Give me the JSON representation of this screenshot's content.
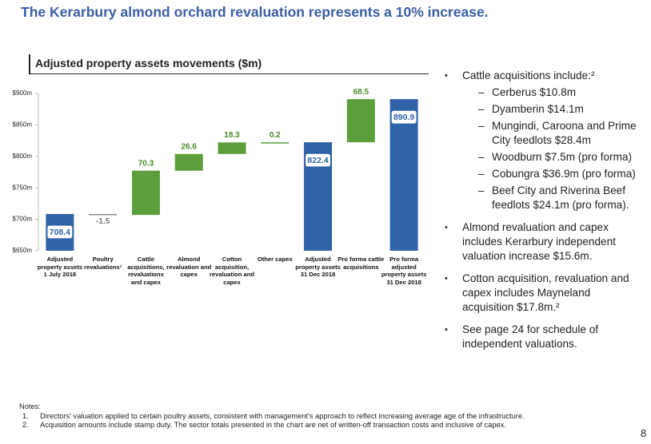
{
  "title": "The Kerarbury almond orchard revaluation represents a 10% increase.",
  "chart_data": {
    "type": "waterfall",
    "title": "Adjusted property assets movements ($m)",
    "categories": [
      "Adjusted property assets 1 July 2018",
      "Poultry revaluations¹",
      "Cattle acquisitions, revaluations and capex",
      "Almond revaluation and capex",
      "Cotton acquisition, revaluation and capex",
      "Other capex",
      "Adjusted property assets 31 Dec 2018",
      "Pro forma cattle acquisitions",
      "Pro forma adjusted property assets 31 Dec 2018"
    ],
    "values": [
      708.4,
      -1.5,
      70.3,
      26.6,
      18.3,
      0.2,
      822.4,
      68.5,
      890.9
    ],
    "measure": [
      "total",
      "relative",
      "relative",
      "relative",
      "relative",
      "relative",
      "total",
      "relative",
      "total"
    ],
    "colors": [
      "#2f62a6",
      "#8c8c8c",
      "#5d9e3c",
      "#5d9e3c",
      "#5d9e3c",
      "#5d9e3c",
      "#2f62a6",
      "#5d9e3c",
      "#2f62a6"
    ],
    "ylim": [
      650,
      900
    ],
    "yticks": [
      {
        "value": 650,
        "label": "$650m"
      },
      {
        "value": 700,
        "label": "$700m"
      },
      {
        "value": 750,
        "label": "$750m"
      },
      {
        "value": 800,
        "label": "$800m"
      },
      {
        "value": 850,
        "label": "$850m"
      },
      {
        "value": 900,
        "label": "$900m"
      }
    ]
  },
  "bullets": [
    {
      "text": "Cattle acquisitions include:²",
      "items": [
        "Cerberus $10.8m",
        "Dyamberin $14.1m",
        "Mungindi, Caroona and Prime City feedlots $28.4m",
        "Woodburn $7.5m (pro forma)",
        "Cobungra $36.9m (pro forma)",
        "Beef City and Riverina Beef feedlots $24.1m (pro forma)."
      ]
    },
    {
      "text": "Almond revaluation and capex includes Kerarbury independent valuation increase $15.6m.",
      "items": []
    },
    {
      "text": "Cotton acquisition, revaluation and capex includes Mayneland acquisition $17.8m.²",
      "items": []
    },
    {
      "text": "See page 24 for schedule of independent valuations.",
      "items": []
    }
  ],
  "notes": {
    "heading": "Notes:",
    "items": [
      {
        "num": "1.",
        "text": "Directors' valuation applied to certain poultry assets, consistent with management's approach to reflect increasing average age of the infrastructure."
      },
      {
        "num": "2.",
        "text": "Acquisition amounts include stamp duty. The sector totals presented in the chart are net of written-off transaction costs and inclusive of capex."
      }
    ]
  },
  "page_number": "8"
}
